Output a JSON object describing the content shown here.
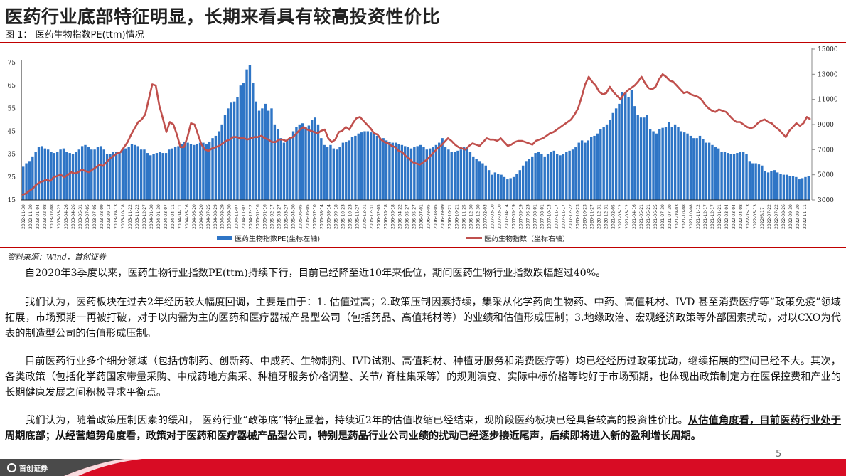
{
  "header": {
    "title": "医药行业底部特征明显，长期来看具有较高投资性价比",
    "figure_caption": "图 1：  医药生物指数PE(ttm)情况"
  },
  "chart_data": {
    "type": "bar+line",
    "title": "医药生物指数PE(ttm)情况",
    "x_range": [
      "2002-11-30",
      "2022-11-11"
    ],
    "x_tick_samples": [
      "2002-11-30",
      "2003-01-04",
      "2003-02-08",
      "2003-03-22",
      "2003-04-26",
      "2003-05-31",
      "2003-07-05",
      "2003-08-09",
      "2003-09-13",
      "2003-10-18",
      "2003-11-22",
      "2003-12-27",
      "2004-01-30",
      "2004-03-07",
      "2004-04-11",
      "2004-05-16",
      "2004-06-20",
      "2004-07-25",
      "2004-08-29",
      "2004-09-30",
      "2004-11-07",
      "2004-12-12",
      "2005-01-16",
      "2005-02-17",
      "2005-03-27",
      "2005-04-30",
      "2005-06-05",
      "2005-07-10",
      "2005-08-14",
      "2005-09-18",
      "2005-10-23",
      "2005-11-27",
      "2005-12-31",
      "2006-02-05",
      "2006-03-18",
      "2006-04-22",
      "2006-05-27",
      "2006-07-01",
      "2006-08-05",
      "2006-09-09",
      "2006-10-21",
      "2006-11-25",
      "2006-12-30",
      "2007-02-03",
      "2007-03-10",
      "2007-04-14",
      "2007-05-19",
      "2007-06-23",
      "2007-08-01",
      "2007-10-13",
      "2007-11-17",
      "2007-12-22",
      "2020-10-23",
      "2020-11-27",
      "2020-12-31",
      "2021-02-05",
      "2021-03-12",
      "2021-04-16",
      "2021-05-21",
      "2021-06-25",
      "2021-07-30",
      "2021-09-03",
      "2021-10-08",
      "2021-11-12",
      "2021-12-17",
      "2022-01-21",
      "2022-03-04",
      "2022-04-08",
      "2022-05-13",
      "2022/6/17",
      "2022-07-22",
      "2022-08-26",
      "2022-09-30",
      "2022-11-11"
    ],
    "left_axis": {
      "label": "医药生物指数PE(坐标左轴)",
      "ticks": [
        15,
        25,
        35,
        45,
        55,
        65,
        75
      ],
      "range": [
        15,
        80
      ]
    },
    "right_axis": {
      "label": "医药生物指数（坐标右轴）",
      "ticks": [
        3000,
        5000,
        7000,
        9000,
        11000,
        13000,
        15000
      ],
      "range": [
        3000,
        15000
      ]
    },
    "legend_position": "bottom",
    "grid": false,
    "series": [
      {
        "name": "医药生物指数PE(坐标左轴)",
        "type": "bar",
        "axis": "left",
        "color": "#2e75c6",
        "values": [
          29.5,
          31,
          32,
          34,
          36,
          38,
          38.5,
          37.5,
          37,
          36,
          35.5,
          36,
          37,
          37.5,
          36,
          35.5,
          35,
          36,
          37,
          38.5,
          39,
          38,
          37,
          37,
          38,
          38.5,
          37,
          35,
          35,
          36,
          36,
          36,
          37,
          37.5,
          38,
          39.5,
          39,
          38.5,
          37,
          37,
          35.5,
          34.5,
          35,
          35.5,
          36,
          35.5,
          35.5,
          37,
          37.5,
          38,
          38.5,
          39.5,
          40.5,
          40,
          39.5,
          39,
          39.5,
          40,
          40,
          39.5,
          40.5,
          42,
          43,
          45,
          48,
          52,
          55,
          57.5,
          58,
          60,
          65,
          66,
          72,
          74,
          66,
          58,
          54,
          55,
          57,
          54,
          55,
          48,
          46,
          42,
          40,
          41,
          41.5,
          45,
          47,
          48,
          48.5,
          47,
          47.5,
          50,
          51,
          48,
          42,
          39,
          38,
          39,
          37.5,
          37,
          38,
          40,
          40.5,
          41,
          42.5,
          43,
          44,
          44.5,
          45,
          45,
          44.5,
          44,
          43,
          42,
          42,
          41,
          40.5,
          40,
          40,
          39.5,
          39,
          38.5,
          38,
          37.5,
          38,
          38.5,
          39,
          38,
          37,
          37.5,
          38,
          39,
          40,
          42,
          38,
          37,
          36,
          36,
          36.5,
          37,
          38,
          37.5,
          36,
          34,
          33,
          32,
          31,
          30,
          28,
          26,
          27,
          26.5,
          26,
          25,
          24,
          24.5,
          25,
          26.5,
          28,
          30,
          32,
          33,
          34,
          35.5,
          36,
          35,
          34,
          35,
          36,
          36.5,
          35,
          34.5,
          35,
          36,
          36.5,
          37,
          38,
          40,
          41,
          40,
          41,
          42.5,
          43,
          44,
          46,
          47,
          48,
          50,
          53,
          55,
          57,
          62,
          62,
          60,
          63,
          56,
          52,
          51,
          51,
          52,
          46,
          45,
          44,
          46,
          46.5,
          47,
          49,
          47,
          48,
          47,
          45,
          44.5,
          44,
          43,
          42,
          42,
          43,
          41.5,
          40,
          40,
          39,
          38,
          37.5,
          36,
          36,
          35.5,
          35,
          35,
          35.5,
          36,
          36,
          35,
          32,
          31,
          31,
          30.5,
          30,
          27.5,
          27,
          27.5,
          28,
          27,
          26.5,
          26,
          26,
          25.5,
          25.5,
          25,
          24,
          24.5,
          25,
          25.5
        ]
      },
      {
        "name": "医药生物指数（坐标右轴）",
        "type": "line",
        "axis": "right",
        "color": "#c0504d",
        "values": [
          3400,
          3500,
          3700,
          3900,
          4200,
          4400,
          4500,
          4600,
          4500,
          4800,
          4900,
          5000,
          4800,
          5000,
          5200,
          5100,
          5200,
          5400,
          5300,
          5200,
          5400,
          5600,
          5800,
          5700,
          6000,
          6300,
          6500,
          6700,
          6800,
          7200,
          7600,
          8200,
          8700,
          9200,
          9400,
          9800,
          11000,
          12200,
          12100,
          10500,
          9500,
          8400,
          9200,
          9000,
          8200,
          7200,
          7200,
          8000,
          9100,
          9000,
          8200,
          7400,
          7000,
          6900,
          7100,
          7200,
          7300,
          7500,
          7700,
          7800,
          8000,
          8000,
          7900,
          7900,
          7800,
          7900,
          8000,
          8000,
          8100,
          7900,
          7800,
          7600,
          7600,
          7800,
          7800,
          7700,
          7900,
          8000,
          8300,
          8600,
          8800,
          8600,
          8500,
          8400,
          8300,
          8500,
          8600,
          7900,
          7600,
          7800,
          8400,
          8500,
          8800,
          8600,
          9100,
          9500,
          9600,
          9300,
          9000,
          8700,
          8300,
          8200,
          7800,
          7600,
          7500,
          7300,
          7200,
          6900,
          6800,
          6500,
          6300,
          6000,
          5900,
          5800,
          6000,
          6200,
          6500,
          6800,
          7100,
          7300,
          7600,
          7900,
          7700,
          7400,
          7200,
          7100,
          7000,
          7300,
          7500,
          7400,
          7300,
          7600,
          7900,
          7800,
          7800,
          7700,
          7900,
          7600,
          7300,
          7400,
          7600,
          7700,
          7700,
          7600,
          7500,
          7400,
          7700,
          7800,
          7900,
          8100,
          8300,
          8400,
          8600,
          8800,
          9000,
          9200,
          9400,
          9800,
          10300,
          11200,
          12200,
          12800,
          12400,
          12100,
          11600,
          11400,
          11500,
          12000,
          11600,
          11300,
          11000,
          11400,
          11700,
          11900,
          12100,
          12400,
          12800,
          12300,
          11900,
          11800,
          12000,
          12600,
          13000,
          12800,
          12500,
          12400,
          12100,
          11800,
          11500,
          11600,
          11400,
          11300,
          11200,
          11000,
          10600,
          10300,
          10100,
          10000,
          10200,
          10100,
          10000,
          9700,
          9400,
          9200,
          9200,
          9000,
          8800,
          8700,
          8800,
          9100,
          9300,
          9400,
          9200,
          9100,
          8800,
          8600,
          8300,
          8000,
          8500,
          8800,
          9100,
          8900,
          9100,
          9600,
          9400
        ]
      }
    ]
  },
  "source": "资料来源：Wind，首创证券",
  "paragraphs": {
    "p1": "自2020年3季度以来，医药生物行业指数PE(ttm)持续下行，目前已经降至近10年来低位，期间医药生物行业指数跌幅超过40%。",
    "p2": "我们认为，医药板块在过去2年经历较大幅度回调，主要是由于：1. 估值过高；2.政策压制因素持续，集采从化学药向生物药、中药、高值耗材、IVD 甚至消费医疗等“政策免疫”领域拓展，市场预期一再被打破，对于以内需为主的医药和医疗器械产品型公司（包括药品、高值耗材等）的业绩和估值形成压制；3.地缘政治、宏观经济政策等外部因素扰动，对以CXO为代表的制造型公司的估值形成压制。",
    "p3": "目前医药行业多个细分领域（包括仿制药、创新药、中成药、生物制剂、IVD试剂、高值耗材、种植牙服务和消费医疗等）均已经经历过政策扰动，继续拓展的空间已经不大。其次，各类政策（包括化学药国家带量采购、中成药地方集采、种植牙服务价格调整、关节/ 脊柱集采等）的规则演变、实际中标价格等均好于市场预期，也体现出政策制定方在医保控费和产业的长期健康发展之间积极寻求平衡点。",
    "p4_plain": "我们认为，随着政策压制因素的缓和， 医药行业“政策底”特征显著，持续近2年的估值收缩已经结束，现阶段医药板块已经具备较高的投资性价比。",
    "p4_emphasis": "从估值角度看，目前医药行业处于周期底部；从经营趋势角度看，政策对于医药和医疗器械产品型公司，特别是药品行业公司业绩的扰动已经逐步接近尾声，后续即将进入新的盈利增长周期。"
  },
  "footer": {
    "page_number": "5",
    "logo_text": "首创证券",
    "logo_subtext": "CAPITAL SECURITIES",
    "brand_color": "#d80c24",
    "dark_color": "#4a4a4a"
  }
}
